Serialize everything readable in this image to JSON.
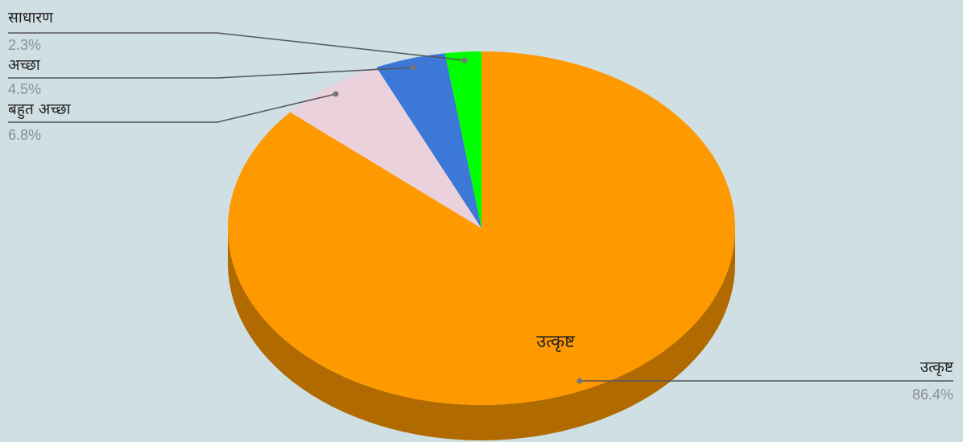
{
  "chart_data": {
    "type": "pie",
    "style": "3d",
    "slices": [
      {
        "label": "उत्कृष्ट",
        "value": 86.4,
        "display": "86.4%",
        "color": "#ff9900",
        "side_color": "#b06a00"
      },
      {
        "label": "बहुत अच्छा",
        "value": 6.8,
        "display": "6.8%",
        "color": "#ead1dc",
        "side_color": "#a8919b"
      },
      {
        "label": "अच्छा",
        "value": 4.5,
        "display": "4.5%",
        "color": "#3c78d8",
        "side_color": "#2a5497"
      },
      {
        "label": "साधारण",
        "value": 2.3,
        "display": "2.3%",
        "color": "#00ff00",
        "side_color": "#00b000"
      }
    ],
    "inner_label": "उत्कृष्ट",
    "leader_line_color": "#555555"
  }
}
